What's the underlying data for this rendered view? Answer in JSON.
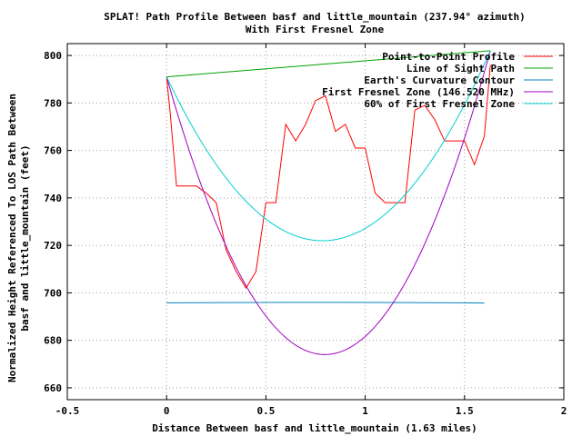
{
  "chart_data": {
    "type": "line",
    "title": "SPLAT! Path Profile Between basf and little_mountain (237.94° azimuth)",
    "subtitle": "With First Fresnel Zone",
    "xlabel": "Distance Between basf and little_mountain (1.63 miles)",
    "ylabel_line1": "Normalized Height Referenced To LOS Path Between",
    "ylabel_line2": "basf and little_mountain (feet)",
    "xlim": [
      -0.5,
      2
    ],
    "ylim": [
      655,
      805
    ],
    "xticks": [
      -0.5,
      0,
      0.5,
      1,
      1.5,
      2
    ],
    "xtick_labels": [
      "-0.5",
      "0",
      "0.5",
      "1",
      "1.5",
      "2"
    ],
    "yticks": [
      660,
      680,
      700,
      720,
      740,
      760,
      780,
      800
    ],
    "ytick_labels": [
      "660",
      "680",
      "700",
      "720",
      "740",
      "760",
      "780",
      "800"
    ],
    "grid": true,
    "legend_position": "top-right",
    "series": [
      {
        "name": "Point-to-Point Profile",
        "color": "#ff0000",
        "x": [
          0,
          0.02,
          0.05,
          0.1,
          0.15,
          0.2,
          0.25,
          0.3,
          0.35,
          0.4,
          0.45,
          0.5,
          0.55,
          0.6,
          0.65,
          0.7,
          0.75,
          0.8,
          0.85,
          0.9,
          0.95,
          1.0,
          1.05,
          1.1,
          1.15,
          1.2,
          1.25,
          1.3,
          1.35,
          1.4,
          1.45,
          1.5,
          1.55,
          1.6,
          1.63
        ],
        "y": [
          791,
          774,
          745,
          745,
          745,
          742,
          738,
          718,
          709,
          702,
          709,
          738,
          738,
          771,
          764,
          771,
          781,
          783,
          768,
          771,
          761,
          761,
          742,
          738,
          738,
          738,
          777,
          779,
          773,
          764,
          764,
          764,
          754,
          766,
          796
        ]
      },
      {
        "name": "Line of Sight Path",
        "color": "#00a000",
        "x": [
          0,
          1.63
        ],
        "y": [
          791,
          802
        ]
      },
      {
        "name": "Earth's Curvature Contour",
        "color": "#0080c0",
        "x": [
          0,
          0.3,
          0.6,
          0.9,
          1.2,
          1.5,
          1.6
        ],
        "y": [
          695.8,
          695.9,
          696.0,
          696.0,
          695.9,
          695.8,
          695.7
        ]
      },
      {
        "name": "First Fresnel Zone (146.520 MHz)",
        "color": "#a000c0",
        "x": [
          0,
          0.8,
          1.63
        ],
        "y": [
          791,
          674,
          802
        ]
      },
      {
        "name": "60% of First Fresnel Zone",
        "color": "#00d0d0",
        "x": [
          0,
          0.8,
          1.63
        ],
        "y": [
          791,
          722,
          802
        ]
      }
    ]
  }
}
